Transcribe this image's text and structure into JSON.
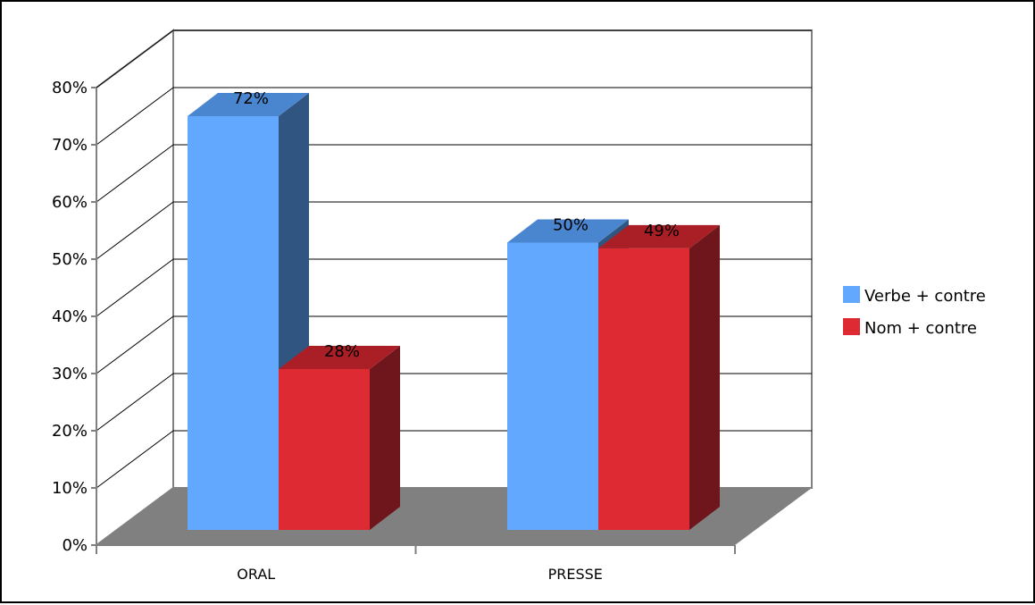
{
  "chart_data": {
    "type": "bar",
    "style": "3d-clustered-column",
    "categories": [
      "ORAL",
      "PRESSE"
    ],
    "series": [
      {
        "name": "Verbe + contre",
        "values": [
          72,
          50
        ],
        "labels": [
          "72%",
          "50%"
        ],
        "color": "#63a8ff",
        "top_color": "#4a86cf",
        "side_color": "#2f5580"
      },
      {
        "name": "Nom + contre",
        "values": [
          28,
          49
        ],
        "labels": [
          "28%",
          "49%"
        ],
        "color": "#de2b33",
        "top_color": "#a91f25",
        "side_color": "#6e161b"
      }
    ],
    "ylim": [
      0,
      80
    ],
    "y_ticks": [
      0,
      10,
      20,
      30,
      40,
      50,
      60,
      70,
      80
    ],
    "y_tick_labels": [
      "0%",
      "10%",
      "20%",
      "30%",
      "40%",
      "50%",
      "60%",
      "70%",
      "80%"
    ],
    "xlabel": "",
    "ylabel": "",
    "grid": true,
    "legend_position": "right",
    "floor_color": "#808080",
    "wall_color": "#ffffff",
    "axis_color": "#808080"
  }
}
